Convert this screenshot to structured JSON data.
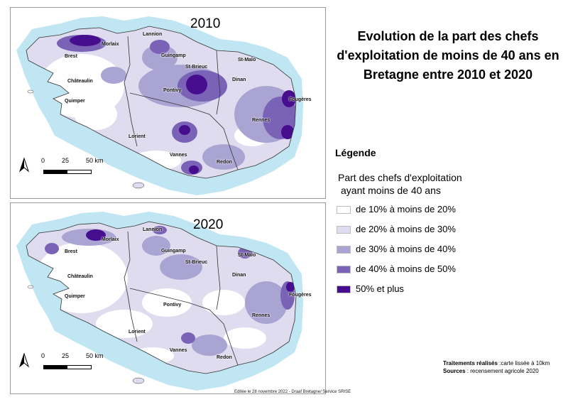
{
  "title": "Evolution de la part des chefs d'exploitation de moins de 40 ans en Bretagne entre 2010 et 2020",
  "legend": {
    "heading": "Légende",
    "subtitle_line1": "Part des chefs d'exploitation",
    "subtitle_line2": "ayant moins de 40 ans",
    "classes": [
      {
        "label": "de 10% à moins de 20%",
        "color": "#ffffff"
      },
      {
        "label": "de 20% à moins de 30%",
        "color": "#dedcee"
      },
      {
        "label": "de 30% à moins de 40%",
        "color": "#aaa4d3"
      },
      {
        "label": "de 40% à moins de 50%",
        "color": "#7a63b7"
      },
      {
        "label": "50% et plus",
        "color": "#460e8f"
      }
    ]
  },
  "maps": [
    {
      "year": "2010"
    },
    {
      "year": "2020"
    }
  ],
  "cities": [
    "Lannion",
    "Brest",
    "Morlaix",
    "Guingamp",
    "Saint-Malo",
    "St-Brieuc",
    "Dinan",
    "Châteaulin",
    "Quimper",
    "Fougères",
    "Pontivy",
    "Rennes",
    "Lorient",
    "Vannes",
    "Redon"
  ],
  "city_labels": {
    "lannion": "Lannion",
    "brest": "Brest",
    "morlaix": "Morlaix",
    "guingamp": "Guingamp",
    "st_malo": "St-Malo",
    "st_brieuc": "St-Brieuc",
    "dinan": "Dinan",
    "chateaulin": "Châteaulin",
    "quimper": "Quimper",
    "fougeres": "Fougères",
    "pontivy": "Pontivy",
    "rennes": "Rennes",
    "lorient": "Lorient",
    "vannes": "Vannes",
    "redon": "Redon"
  },
  "scale": {
    "zero": "0",
    "mid": "25",
    "end": "50 km"
  },
  "sea_color": "#bfe6f2",
  "credits": {
    "treatment_label": "Traitements réalisés",
    "treatment_value": " :carte lissée à 10km",
    "sources_label": "Sources",
    "sources_value": " : recensement agricole 2020"
  },
  "footer": "Editée le 28 novembre 2022 - Draaf Bretagne/ Service SRISE"
}
